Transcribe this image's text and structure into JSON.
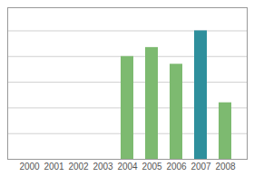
{
  "chart_data": {
    "type": "bar",
    "categories": [
      "2000",
      "2001",
      "2002",
      "2003",
      "2004",
      "2005",
      "2006",
      "2007",
      "2008"
    ],
    "values": [
      0,
      0,
      0,
      0,
      80,
      87,
      74,
      100,
      44
    ],
    "colors": [
      "#7dba70",
      "#7dba70",
      "#7dba70",
      "#7dba70",
      "#7dba70",
      "#7dba70",
      "#7dba70",
      "#2e8f9c",
      "#7dba70"
    ],
    "ylim": [
      0,
      118
    ],
    "yticks": [
      0,
      20,
      40,
      60,
      80,
      100
    ],
    "grid": true,
    "tick_labels": "x"
  }
}
